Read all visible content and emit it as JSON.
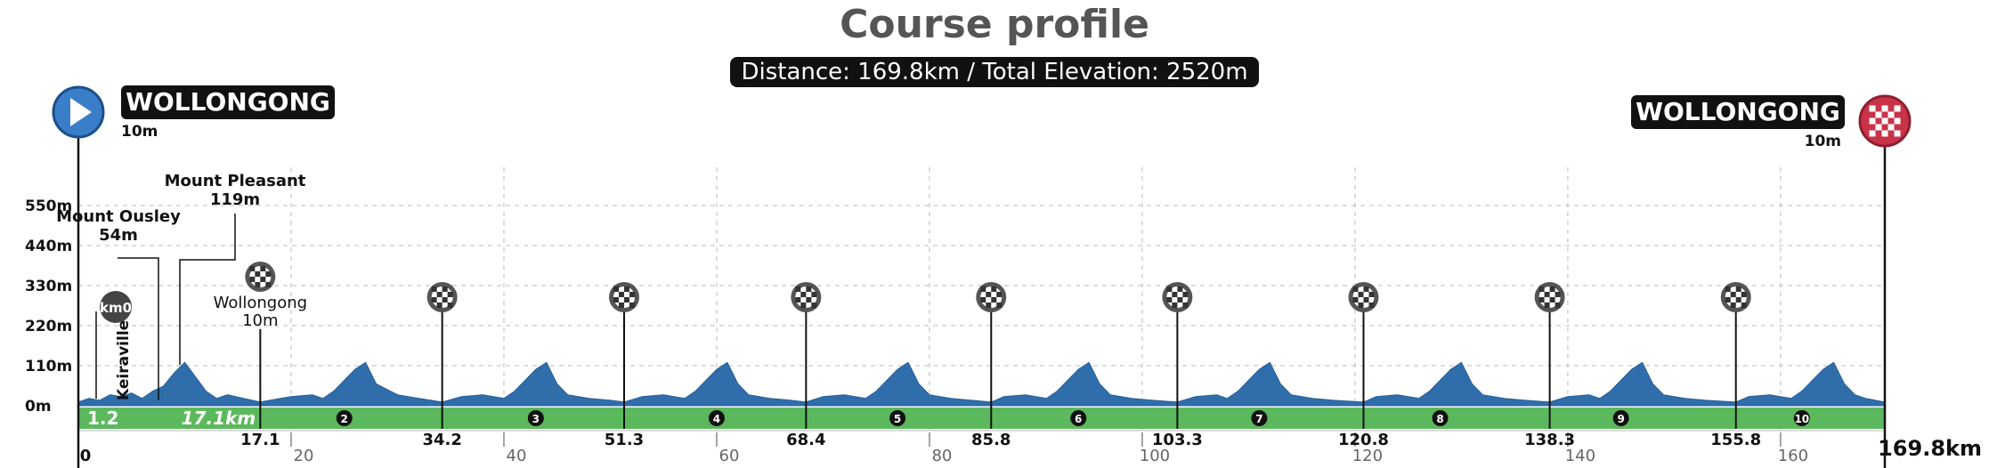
{
  "title": "Course profile",
  "subtitle": "Distance: 169.8km / Total Elevation: 2520m",
  "start": {
    "name": "WOLLONGONG",
    "elevation": "10m"
  },
  "finish": {
    "name": "WOLLONGONG",
    "elevation": "10m"
  },
  "total_distance_label": "169.8km",
  "colors": {
    "profile": "#2f6eab",
    "road": "#5cb85c",
    "start_icon": "#3a7dc9",
    "finish_icon": "#c9334a",
    "text": "#111111"
  },
  "chart_data": {
    "type": "area",
    "title": "Course profile",
    "subtitle": "Distance: 169.8km / Total Elevation: 2520m",
    "xlim": [
      0,
      169.8
    ],
    "ylim": [
      0,
      550
    ],
    "grid": true,
    "y_ticks": [
      {
        "value": 0,
        "label": "0m"
      },
      {
        "value": 110,
        "label": "110m"
      },
      {
        "value": 220,
        "label": "220m"
      },
      {
        "value": 330,
        "label": "330m"
      },
      {
        "value": 440,
        "label": "440m"
      },
      {
        "value": 550,
        "label": "550m"
      }
    ],
    "x_ticks": [
      {
        "value": 0,
        "label": "0"
      },
      {
        "value": 20,
        "label": "20"
      },
      {
        "value": 40,
        "label": "40"
      },
      {
        "value": 60,
        "label": "60"
      },
      {
        "value": 80,
        "label": "80"
      },
      {
        "value": 100,
        "label": "100"
      },
      {
        "value": 120,
        "label": "120"
      },
      {
        "value": 140,
        "label": "140"
      },
      {
        "value": 160,
        "label": "160"
      }
    ],
    "profile": {
      "x": [
        0,
        1,
        2,
        3,
        4,
        5,
        6,
        7,
        8,
        9,
        10,
        11,
        12,
        13,
        14,
        17.1,
        19,
        20,
        22,
        23,
        24,
        25,
        26,
        27,
        28,
        30,
        32,
        34.2,
        36,
        38,
        40,
        41,
        42,
        43,
        44,
        45,
        46,
        48,
        50,
        51.3,
        53,
        55,
        57,
        58,
        59,
        60,
        61,
        62,
        63,
        65,
        67,
        68.4,
        70,
        72,
        74,
        75,
        76,
        77,
        78,
        79,
        80,
        82,
        84,
        85.8,
        87,
        89,
        91,
        92,
        93,
        94,
        95,
        96,
        97,
        99,
        101,
        103.3,
        105,
        107,
        108,
        109,
        110,
        111,
        112,
        113,
        114,
        116,
        118,
        120.8,
        122,
        124,
        126,
        127,
        128,
        129,
        130,
        131,
        132,
        134,
        136,
        138.3,
        140,
        142,
        143,
        144,
        145,
        146,
        147,
        148,
        149,
        151,
        153,
        155.8,
        157,
        159,
        161,
        162,
        163,
        164,
        165,
        166,
        167,
        168,
        169.8
      ],
      "elevation": [
        10,
        20,
        15,
        30,
        25,
        35,
        20,
        40,
        54,
        90,
        119,
        80,
        40,
        20,
        30,
        10,
        20,
        25,
        30,
        20,
        40,
        70,
        100,
        119,
        60,
        30,
        20,
        10,
        25,
        30,
        20,
        40,
        70,
        100,
        119,
        60,
        30,
        20,
        15,
        10,
        25,
        30,
        20,
        40,
        70,
        100,
        119,
        60,
        30,
        20,
        15,
        10,
        25,
        30,
        20,
        40,
        70,
        100,
        119,
        60,
        30,
        20,
        15,
        10,
        25,
        30,
        20,
        40,
        70,
        100,
        119,
        60,
        30,
        20,
        15,
        10,
        25,
        30,
        20,
        40,
        70,
        100,
        119,
        60,
        30,
        20,
        15,
        10,
        25,
        30,
        20,
        40,
        70,
        100,
        119,
        60,
        30,
        20,
        15,
        10,
        25,
        30,
        20,
        40,
        70,
        100,
        119,
        60,
        30,
        20,
        15,
        10,
        25,
        30,
        20,
        40,
        70,
        100,
        119,
        60,
        30,
        20,
        10
      ]
    },
    "road_labels": [
      {
        "x": 0.5,
        "label": "1.2"
      },
      {
        "x": 7,
        "label": "17.1km"
      }
    ],
    "laps": [
      {
        "x": 25,
        "label": "2"
      },
      {
        "x": 43,
        "label": "3"
      },
      {
        "x": 60,
        "label": "4"
      },
      {
        "x": 77,
        "label": "5"
      },
      {
        "x": 94,
        "label": "6"
      },
      {
        "x": 111,
        "label": "7"
      },
      {
        "x": 128,
        "label": "8"
      },
      {
        "x": 145,
        "label": "9"
      },
      {
        "x": 162,
        "label": "10"
      }
    ],
    "sprint_points": [
      {
        "x": 17.1,
        "label": "17.1"
      },
      {
        "x": 34.2,
        "label": "34.2"
      },
      {
        "x": 51.3,
        "label": "51.3"
      },
      {
        "x": 68.4,
        "label": "68.4"
      },
      {
        "x": 85.8,
        "label": "85.8"
      },
      {
        "x": 103.3,
        "label": "103.3"
      },
      {
        "x": 120.8,
        "label": "120.8"
      },
      {
        "x": 138.3,
        "label": "138.3"
      },
      {
        "x": 155.8,
        "label": "155.8"
      }
    ],
    "annotations": [
      {
        "name": "Keiraville",
        "x": 1.2,
        "elevation": null
      },
      {
        "name": "Mount Ousley",
        "elevation": "54m",
        "x": 7.5
      },
      {
        "name": "Mount Pleasant",
        "elevation": "119m",
        "x": 9.5
      },
      {
        "name": "Wollongong",
        "elevation": "10m",
        "x": 17.1
      }
    ],
    "km0_label": "km0"
  }
}
